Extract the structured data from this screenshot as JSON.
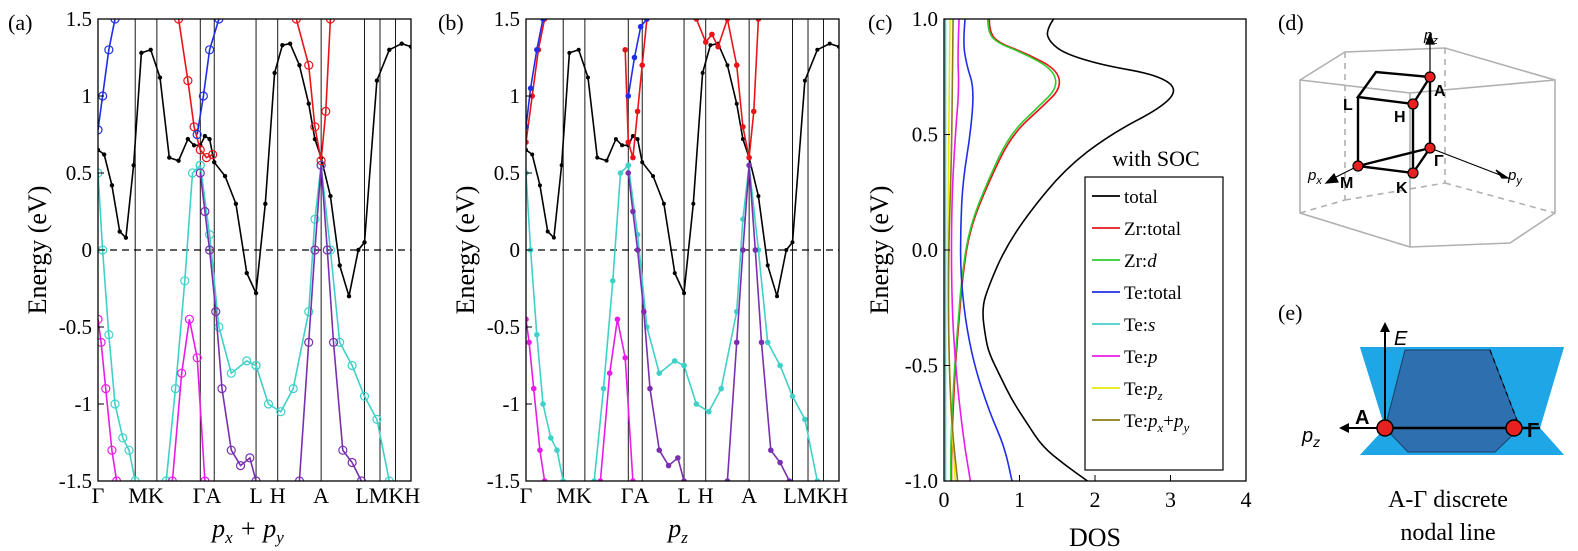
{
  "panels": {
    "a": {
      "label": "(a)",
      "xlabel": "p_x + p_y"
    },
    "b": {
      "label": "(b)",
      "xlabel": "p_z"
    },
    "c": {
      "label": "(c)",
      "xlabel": "DOS",
      "title": "with SOC"
    },
    "d": {
      "label": "(d)"
    },
    "e": {
      "label": "(e)",
      "caption_line1": "A-Γ discrete",
      "caption_line2": "nodal line"
    }
  },
  "ylabel": "Energy (eV)",
  "band_ticks": [
    "1.5",
    "1",
    "0.5",
    "0",
    "-0.5",
    "-1",
    "-1.5"
  ],
  "dos_yticks": [
    "1.0",
    "0.5",
    "0.0",
    "-0.5",
    "-1.0"
  ],
  "dos_xticks": [
    "0",
    "1",
    "2",
    "3",
    "4"
  ],
  "kpath": [
    "Γ",
    "M",
    "K",
    "Γ",
    "A",
    "L",
    "H",
    "A",
    "L",
    "M",
    "K",
    "H"
  ],
  "kpath_labels": [
    "Γ",
    "MK",
    "ΓA",
    "L",
    "H",
    "A",
    "LMKH"
  ],
  "legend": [
    "total",
    "Zr:total",
    "Zr:d",
    "Te:total",
    "Te:s",
    "Te:p",
    "Te:p_z",
    "Te:p_x+p_y"
  ],
  "bz_labels": {
    "pz": "p_z",
    "px": "p_x",
    "py": "p_y",
    "A": "A",
    "L": "L",
    "H": "H",
    "M": "M",
    "K": "K",
    "G": "Γ"
  },
  "nodal_labels": {
    "E": "E",
    "pz": "p_z",
    "A": "A",
    "G": "Γ"
  },
  "colors": {
    "black": "#000000",
    "red": "#e8141a",
    "blue": "#1f2ee8",
    "cyan": "#40d0c8",
    "magenta": "#e81ce8",
    "purple": "#7a2fb0",
    "green": "#2ecc2e",
    "yellow": "#e8e810",
    "olive": "#8a7a1a",
    "node_red": "#e82020",
    "cone": "#1ea6e6",
    "plane": "#2e6fb0"
  },
  "chart_data": [
    {
      "type": "line",
      "panel": "a",
      "ylim": [
        -1.5,
        1.5
      ],
      "kpoints": [
        0,
        1.2,
        1.9,
        3.3,
        3.75,
        5.1,
        5.8,
        7.2,
        8.6,
        9.1,
        9.6,
        10.1
      ],
      "series": [
        {
          "color": "black",
          "x": [
            0,
            0.2,
            0.45,
            0.7,
            0.9,
            1.15,
            1.4,
            1.7,
            2.0,
            2.3,
            2.6,
            2.9,
            3.1,
            3.3,
            3.45,
            3.6,
            3.75,
            4.1,
            4.45,
            4.8,
            5.1,
            5.4,
            5.7,
            5.95,
            6.2,
            6.5,
            6.8,
            7.0,
            7.2,
            7.5,
            7.8,
            8.1,
            8.4,
            8.6,
            9.0,
            9.4,
            9.8,
            10.1
          ],
          "y": [
            0.65,
            0.62,
            0.42,
            0.12,
            0.08,
            0.55,
            1.28,
            1.3,
            1.12,
            0.6,
            0.58,
            0.72,
            0.68,
            0.68,
            0.74,
            0.72,
            0.57,
            0.48,
            0.3,
            -0.15,
            -0.28,
            0.3,
            1.15,
            1.33,
            1.34,
            1.2,
            0.95,
            0.72,
            0.6,
            0.35,
            -0.1,
            -0.3,
            0.0,
            0.05,
            1.1,
            1.3,
            1.34,
            1.32
          ]
        },
        {
          "color": "cyan",
          "x": [
            0,
            0.15,
            0.35,
            0.55,
            0.8,
            1.0,
            1.2
          ],
          "y": [
            0.5,
            0.0,
            -0.55,
            -1.0,
            -1.22,
            -1.3,
            -1.5
          ]
        },
        {
          "color": "cyan",
          "x": [
            2.2,
            2.5,
            2.8,
            3.05,
            3.3
          ],
          "y": [
            -1.5,
            -0.9,
            -0.2,
            0.5,
            0.55
          ]
        },
        {
          "color": "cyan",
          "x": [
            3.3,
            3.6,
            3.9,
            4.3,
            4.8,
            5.1
          ],
          "y": [
            0.55,
            0.1,
            -0.5,
            -0.8,
            -0.72,
            -0.75
          ]
        },
        {
          "color": "cyan",
          "x": [
            5.1,
            5.5,
            5.9,
            6.3,
            6.8,
            7.0,
            7.2
          ],
          "y": [
            -0.75,
            -1.0,
            -1.05,
            -0.9,
            -0.4,
            0.2,
            0.55
          ]
        },
        {
          "color": "cyan",
          "x": [
            7.2,
            7.5,
            7.8,
            8.2,
            8.6,
            9.0,
            9.4
          ],
          "y": [
            0.55,
            0.0,
            -0.6,
            -0.75,
            -0.95,
            -1.1,
            -1.5
          ]
        },
        {
          "color": "purple",
          "x": [
            3.3,
            3.45,
            3.6,
            3.8,
            4.0,
            4.3,
            4.6,
            4.9,
            5.1
          ],
          "y": [
            0.5,
            0.25,
            0.0,
            -0.4,
            -0.9,
            -1.3,
            -1.4,
            -1.35,
            -1.5
          ]
        },
        {
          "color": "purple",
          "x": [
            6.5,
            6.8,
            7.0,
            7.2,
            7.4,
            7.6,
            7.9,
            8.2,
            8.5
          ],
          "y": [
            -1.5,
            -0.6,
            0.0,
            0.55,
            0.0,
            -0.6,
            -1.3,
            -1.38,
            -1.5
          ]
        },
        {
          "color": "magenta",
          "x": [
            0,
            0.1,
            0.25,
            0.45,
            0.6
          ],
          "y": [
            -0.45,
            -0.6,
            -0.9,
            -1.3,
            -1.5
          ]
        },
        {
          "color": "magenta",
          "x": [
            2.4,
            2.7,
            2.95,
            3.2,
            3.45
          ],
          "y": [
            -1.5,
            -0.8,
            -0.45,
            -0.7,
            -1.5
          ]
        },
        {
          "color": "red",
          "x": [
            2.6,
            2.9,
            3.1,
            3.3,
            3.5,
            3.7
          ],
          "y": [
            1.5,
            1.1,
            0.8,
            0.65,
            0.6,
            0.62
          ]
        },
        {
          "color": "red",
          "x": [
            6.4,
            6.8,
            7.0,
            7.2,
            7.35,
            7.5
          ],
          "y": [
            1.5,
            1.2,
            0.8,
            0.58,
            0.9,
            1.5
          ]
        },
        {
          "color": "blue",
          "x": [
            0,
            0.15,
            0.35,
            0.55
          ],
          "y": [
            0.78,
            1.0,
            1.3,
            1.5
          ]
        },
        {
          "color": "blue",
          "x": [
            3.2,
            3.4,
            3.6,
            3.9
          ],
          "y": [
            0.75,
            1.0,
            1.3,
            1.5
          ]
        }
      ]
    },
    {
      "type": "line",
      "panel": "b",
      "ylim": [
        -1.5,
        1.5
      ],
      "kpoints": [
        0,
        1.2,
        1.9,
        3.3,
        3.75,
        5.1,
        5.8,
        7.2,
        8.6,
        9.1,
        9.6,
        10.1
      ],
      "series": [
        {
          "color": "black",
          "x": [
            0,
            0.2,
            0.45,
            0.7,
            0.9,
            1.15,
            1.4,
            1.7,
            2.0,
            2.3,
            2.6,
            2.9,
            3.1,
            3.3,
            3.45,
            3.6,
            3.75,
            4.1,
            4.45,
            4.8,
            5.1,
            5.4,
            5.7,
            5.95,
            6.2,
            6.5,
            6.8,
            7.0,
            7.2,
            7.5,
            7.8,
            8.1,
            8.4,
            8.6,
            9.0,
            9.4,
            9.8,
            10.1
          ],
          "y": [
            0.65,
            0.62,
            0.42,
            0.12,
            0.08,
            0.55,
            1.28,
            1.3,
            1.12,
            0.6,
            0.58,
            0.72,
            0.68,
            0.68,
            0.74,
            0.72,
            0.57,
            0.48,
            0.3,
            -0.15,
            -0.28,
            0.3,
            1.15,
            1.33,
            1.34,
            1.2,
            0.95,
            0.72,
            0.6,
            0.35,
            -0.1,
            -0.3,
            0.0,
            0.05,
            1.1,
            1.3,
            1.34,
            1.32
          ]
        },
        {
          "color": "cyan",
          "x": [
            0,
            0.15,
            0.35,
            0.55,
            0.8,
            1.0,
            1.2
          ],
          "y": [
            0.5,
            0.0,
            -0.55,
            -1.0,
            -1.22,
            -1.3,
            -1.5
          ]
        },
        {
          "color": "cyan",
          "x": [
            2.2,
            2.5,
            2.8,
            3.05,
            3.3
          ],
          "y": [
            -1.5,
            -0.9,
            -0.2,
            0.5,
            0.55
          ]
        },
        {
          "color": "cyan",
          "x": [
            3.3,
            3.6,
            3.9,
            4.3,
            4.8,
            5.1
          ],
          "y": [
            0.55,
            0.1,
            -0.5,
            -0.8,
            -0.72,
            -0.75
          ]
        },
        {
          "color": "cyan",
          "x": [
            5.1,
            5.5,
            5.9,
            6.3,
            6.8,
            7.0,
            7.2
          ],
          "y": [
            -0.75,
            -1.0,
            -1.05,
            -0.9,
            -0.4,
            0.2,
            0.55
          ]
        },
        {
          "color": "cyan",
          "x": [
            7.2,
            7.5,
            7.8,
            8.2,
            8.6,
            9.0,
            9.4
          ],
          "y": [
            0.55,
            0.0,
            -0.6,
            -0.75,
            -0.95,
            -1.1,
            -1.5
          ]
        },
        {
          "color": "purple",
          "x": [
            3.3,
            3.45,
            3.6,
            3.8,
            4.0,
            4.3,
            4.6,
            4.9,
            5.1
          ],
          "y": [
            0.5,
            0.25,
            0.0,
            -0.4,
            -0.9,
            -1.3,
            -1.4,
            -1.35,
            -1.5
          ]
        },
        {
          "color": "purple",
          "x": [
            6.5,
            6.8,
            7.0,
            7.2,
            7.4,
            7.6,
            7.9,
            8.2,
            8.5
          ],
          "y": [
            -1.5,
            -0.6,
            0.0,
            0.55,
            0.0,
            -0.6,
            -1.3,
            -1.38,
            -1.5
          ]
        },
        {
          "color": "magenta",
          "x": [
            0,
            0.1,
            0.25,
            0.45,
            0.6
          ],
          "y": [
            -0.45,
            -0.6,
            -0.9,
            -1.3,
            -1.5
          ]
        },
        {
          "color": "magenta",
          "x": [
            2.4,
            2.7,
            2.95,
            3.2,
            3.45
          ],
          "y": [
            -1.5,
            -0.8,
            -0.45,
            -0.7,
            -1.5
          ]
        },
        {
          "color": "red",
          "x": [
            0,
            0.2,
            0.4,
            0.6
          ],
          "y": [
            0.7,
            1.0,
            1.3,
            1.5
          ]
        },
        {
          "color": "red",
          "x": [
            3.2,
            3.3,
            3.45,
            3.6,
            3.75,
            3.9
          ],
          "y": [
            1.3,
            0.7,
            0.6,
            0.9,
            1.2,
            1.5
          ]
        },
        {
          "color": "red",
          "x": [
            5.5,
            5.8,
            6.0,
            6.2,
            6.5,
            6.8,
            7.0,
            7.2,
            7.35,
            7.5
          ],
          "y": [
            1.5,
            1.35,
            1.4,
            1.32,
            1.5,
            1.2,
            0.8,
            0.6,
            0.9,
            1.5
          ]
        },
        {
          "color": "blue",
          "x": [
            0,
            0.15,
            0.35,
            0.55
          ],
          "y": [
            0.8,
            1.05,
            1.3,
            1.5
          ]
        },
        {
          "color": "blue",
          "x": [
            3.3,
            3.5,
            3.7,
            3.9
          ],
          "y": [
            1.0,
            1.25,
            1.45,
            1.5
          ]
        }
      ]
    },
    {
      "type": "line",
      "panel": "c",
      "title": "with SOC",
      "xlabel": "DOS",
      "ylabel": "Energy (eV)",
      "xlim": [
        0,
        4
      ],
      "ylim": [
        -1.0,
        1.0
      ],
      "series": [
        {
          "name": "total",
          "color": "black",
          "x": [
            1.45,
            1.35,
            1.4,
            1.6,
            2.1,
            2.8,
            3.1,
            2.9,
            2.2,
            1.6,
            1.1,
            0.8,
            0.6,
            0.5,
            0.55,
            0.6,
            0.75,
            0.9,
            1.1,
            1.3,
            1.6,
            1.9
          ],
          "y": [
            1.0,
            0.95,
            0.9,
            0.85,
            0.8,
            0.76,
            0.7,
            0.62,
            0.5,
            0.35,
            0.15,
            0.0,
            -0.15,
            -0.25,
            -0.38,
            -0.45,
            -0.55,
            -0.65,
            -0.75,
            -0.85,
            -0.93,
            -1.0
          ]
        },
        {
          "name": "Zr:total",
          "color": "red",
          "x": [
            0.6,
            0.6,
            0.7,
            1.1,
            1.5,
            1.55,
            1.3,
            0.9,
            0.6,
            0.35,
            0.25,
            0.2,
            0.15,
            0.12,
            0.1,
            0.1
          ],
          "y": [
            1.0,
            0.95,
            0.9,
            0.85,
            0.78,
            0.7,
            0.62,
            0.5,
            0.3,
            0.1,
            -0.1,
            -0.3,
            -0.5,
            -0.7,
            -0.85,
            -1.0
          ]
        },
        {
          "name": "Zr:d",
          "color": "green",
          "x": [
            0.58,
            0.58,
            0.68,
            1.07,
            1.45,
            1.5,
            1.25,
            0.87,
            0.58,
            0.34,
            0.24,
            0.19,
            0.14,
            0.11,
            0.09,
            0.09
          ],
          "y": [
            1.0,
            0.95,
            0.9,
            0.85,
            0.78,
            0.7,
            0.62,
            0.5,
            0.3,
            0.1,
            -0.1,
            -0.3,
            -0.5,
            -0.7,
            -0.85,
            -1.0
          ]
        },
        {
          "name": "Te:total",
          "color": "blue",
          "x": [
            0.28,
            0.25,
            0.3,
            0.4,
            0.35,
            0.25,
            0.22,
            0.22,
            0.28,
            0.4,
            0.6,
            0.8,
            0.9
          ],
          "y": [
            1.0,
            0.9,
            0.8,
            0.7,
            0.5,
            0.3,
            0.1,
            -0.1,
            -0.3,
            -0.5,
            -0.7,
            -0.85,
            -1.0
          ]
        },
        {
          "name": "Te:s",
          "color": "cyan",
          "x": [
            0.02,
            0.02,
            0.02,
            0.02,
            0.02
          ],
          "y": [
            1.0,
            0.5,
            0.0,
            -0.5,
            -1.0
          ]
        },
        {
          "name": "Te:p",
          "color": "magenta",
          "x": [
            0.2,
            0.18,
            0.2,
            0.15,
            0.1,
            0.1,
            0.15,
            0.25,
            0.35
          ],
          "y": [
            1.0,
            0.85,
            0.7,
            0.5,
            0.2,
            -0.2,
            -0.5,
            -0.8,
            -1.0
          ]
        },
        {
          "name": "Te:p_z",
          "color": "yellow",
          "x": [
            0.08,
            0.07,
            0.06,
            0.05,
            0.06,
            0.1,
            0.15
          ],
          "y": [
            1.0,
            0.7,
            0.4,
            0.0,
            -0.4,
            -0.75,
            -1.0
          ]
        },
        {
          "name": "Te:p_x+p_y",
          "color": "olive",
          "x": [
            0.12,
            0.11,
            0.1,
            0.06,
            0.06,
            0.1,
            0.18
          ],
          "y": [
            1.0,
            0.7,
            0.4,
            0.0,
            -0.4,
            -0.75,
            -1.0
          ]
        }
      ]
    }
  ]
}
